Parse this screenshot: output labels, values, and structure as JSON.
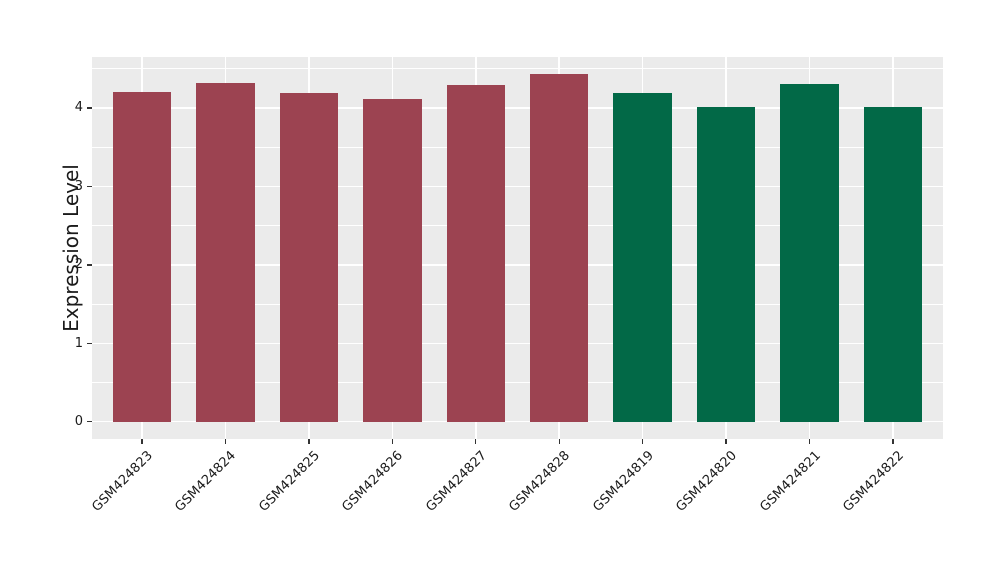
{
  "chart_data": {
    "type": "bar",
    "title": "",
    "ylabel": "Expression Level",
    "xlabel": "",
    "categories": [
      "GSM424823",
      "GSM424824",
      "GSM424825",
      "GSM424826",
      "GSM424827",
      "GSM424828",
      "GSM424819",
      "GSM424820",
      "GSM424821",
      "GSM424822"
    ],
    "values": [
      4.21,
      4.32,
      4.19,
      4.12,
      4.29,
      4.43,
      4.19,
      4.01,
      4.3,
      4.01
    ],
    "bar_colors": [
      "#9C4351",
      "#9C4351",
      "#9C4351",
      "#9C4351",
      "#9C4351",
      "#9C4351",
      "#026947",
      "#026947",
      "#026947",
      "#026947"
    ],
    "palette": {
      "group_1_maroon": "#9C4351",
      "group_2_green": "#026947"
    },
    "yticks": [
      "0",
      "1",
      "2",
      "3",
      "4"
    ],
    "ytick_values": [
      0,
      1,
      2,
      3,
      4
    ],
    "minor_ytick_values": [
      0.5,
      1.5,
      2.5,
      3.5,
      4.5
    ],
    "ylim": [
      -0.22,
      4.65
    ],
    "bar_width_fraction": 0.7,
    "grid": "white major+minor horizontal lines, white major vertical lines at category centers",
    "legend": "none",
    "panel_bg": "#EBEBEB",
    "grid_color": "#FFFFFF",
    "tick_color": "#333333",
    "text_color": "#1a1a1a",
    "x_label_rotation_deg": 45
  }
}
